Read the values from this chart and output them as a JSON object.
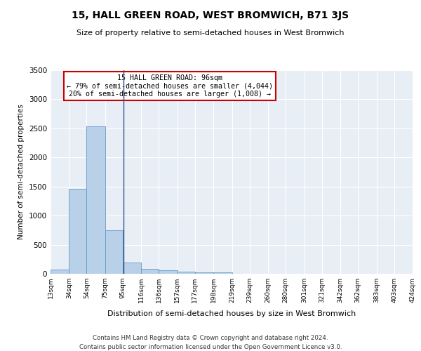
{
  "title": "15, HALL GREEN ROAD, WEST BROMWICH, B71 3JS",
  "subtitle": "Size of property relative to semi-detached houses in West Bromwich",
  "xlabel": "Distribution of semi-detached houses by size in West Bromwich",
  "ylabel": "Number of semi-detached properties",
  "footer_line1": "Contains HM Land Registry data © Crown copyright and database right 2024.",
  "footer_line2": "Contains public sector information licensed under the Open Government Licence v3.0.",
  "annotation_line1": "15 HALL GREEN ROAD: 96sqm",
  "annotation_line2": "← 79% of semi-detached houses are smaller (4,044)",
  "annotation_line3": "20% of semi-detached houses are larger (1,008) →",
  "bar_edges": [
    13,
    34,
    54,
    75,
    95,
    116,
    136,
    157,
    177,
    198,
    219,
    239,
    260,
    280,
    301,
    321,
    342,
    362,
    383,
    403,
    424
  ],
  "bar_heights": [
    75,
    1460,
    2530,
    750,
    190,
    80,
    55,
    40,
    30,
    20,
    0,
    0,
    0,
    0,
    0,
    0,
    0,
    0,
    0,
    0
  ],
  "property_line_x": 96,
  "bar_color": "#b8d0e8",
  "bar_edgecolor": "#6699cc",
  "property_line_color": "#2a4a8a",
  "annotation_box_edgecolor": "#cc0000",
  "background_color": "#e8eef5",
  "ylim": [
    0,
    3500
  ],
  "yticks": [
    0,
    500,
    1000,
    1500,
    2000,
    2500,
    3000,
    3500
  ],
  "title_fontsize": 10,
  "subtitle_fontsize": 8
}
